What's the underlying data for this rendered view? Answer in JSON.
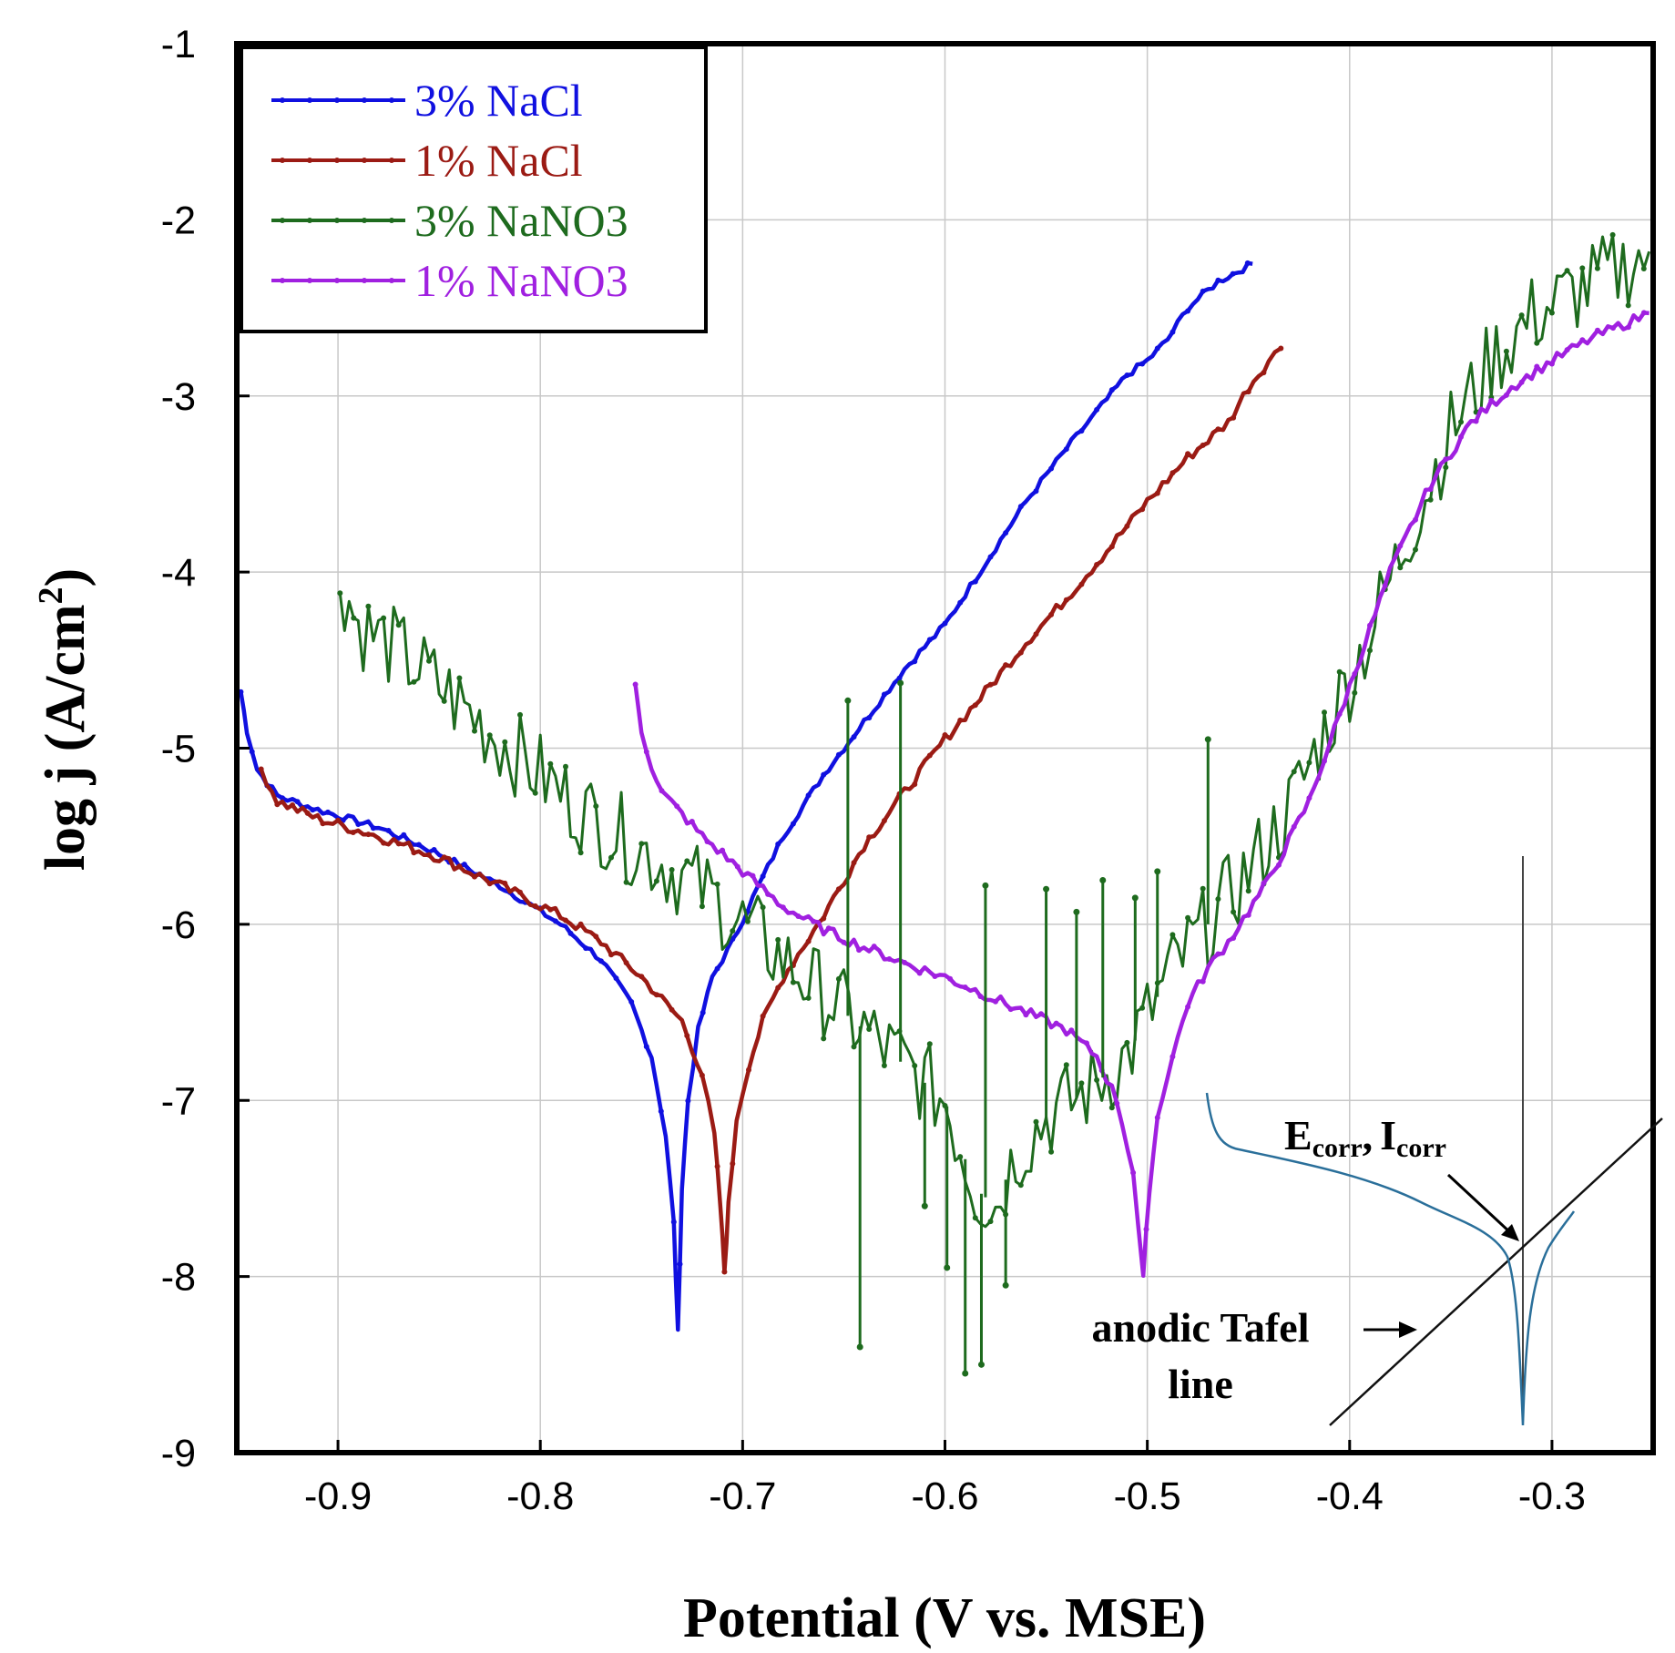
{
  "chart_data": {
    "type": "line",
    "title": "",
    "xlabel": "Potential (V vs. MSE)",
    "ylabel": "log j (A/cm",
    "ylabel_sup": "2",
    "ylabel_close": ")",
    "xlim": [
      -0.95,
      -0.25
    ],
    "ylim": [
      -9,
      -1
    ],
    "x_ticks": [
      -0.9,
      -0.8,
      -0.7,
      -0.6,
      -0.5,
      -0.4,
      -0.3
    ],
    "x_tick_labels": [
      "-0.9",
      "-0.8",
      "-0.7",
      "-0.6",
      "-0.5",
      "-0.4",
      "-0.3"
    ],
    "y_ticks": [
      -9,
      -8,
      -7,
      -6,
      -5,
      -4,
      -3,
      -2,
      -1
    ],
    "y_tick_labels": [
      "-9",
      "-8",
      "-7",
      "-6",
      "-5",
      "-4",
      "-3",
      "-2",
      "-1"
    ],
    "legend_position": "top-left",
    "series": [
      {
        "name": "3% NaCl",
        "color": "#1010e0",
        "noise": 0.02,
        "points": [
          [
            -0.948,
            -4.68
          ],
          [
            -0.945,
            -4.9
          ],
          [
            -0.94,
            -5.12
          ],
          [
            -0.93,
            -5.27
          ],
          [
            -0.91,
            -5.35
          ],
          [
            -0.88,
            -5.45
          ],
          [
            -0.85,
            -5.6
          ],
          [
            -0.82,
            -5.78
          ],
          [
            -0.79,
            -6.0
          ],
          [
            -0.77,
            -6.2
          ],
          [
            -0.755,
            -6.45
          ],
          [
            -0.745,
            -6.75
          ],
          [
            -0.738,
            -7.2
          ],
          [
            -0.734,
            -7.7
          ],
          [
            -0.732,
            -8.32
          ],
          [
            -0.73,
            -7.5
          ],
          [
            -0.727,
            -7.0
          ],
          [
            -0.722,
            -6.6
          ],
          [
            -0.715,
            -6.3
          ],
          [
            -0.705,
            -6.1
          ],
          [
            -0.695,
            -5.85
          ],
          [
            -0.68,
            -5.5
          ],
          [
            -0.66,
            -5.15
          ],
          [
            -0.64,
            -4.85
          ],
          [
            -0.62,
            -4.55
          ],
          [
            -0.6,
            -4.3
          ],
          [
            -0.58,
            -3.95
          ],
          [
            -0.56,
            -3.6
          ],
          [
            -0.54,
            -3.3
          ],
          [
            -0.52,
            -3.02
          ],
          [
            -0.51,
            -2.88
          ],
          [
            -0.5,
            -2.8
          ],
          [
            -0.49,
            -2.68
          ],
          [
            -0.48,
            -2.5
          ],
          [
            -0.465,
            -2.35
          ],
          [
            -0.448,
            -2.25
          ]
        ]
      },
      {
        "name": "1% NaCl",
        "color": "#9b1b14",
        "noise": 0.03,
        "points": [
          [
            -0.938,
            -5.12
          ],
          [
            -0.93,
            -5.3
          ],
          [
            -0.91,
            -5.4
          ],
          [
            -0.88,
            -5.5
          ],
          [
            -0.85,
            -5.62
          ],
          [
            -0.82,
            -5.78
          ],
          [
            -0.79,
            -5.95
          ],
          [
            -0.77,
            -6.1
          ],
          [
            -0.75,
            -6.3
          ],
          [
            -0.73,
            -6.55
          ],
          [
            -0.72,
            -6.85
          ],
          [
            -0.714,
            -7.2
          ],
          [
            -0.711,
            -7.6
          ],
          [
            -0.709,
            -7.97
          ],
          [
            -0.707,
            -7.6
          ],
          [
            -0.703,
            -7.1
          ],
          [
            -0.697,
            -6.8
          ],
          [
            -0.69,
            -6.55
          ],
          [
            -0.68,
            -6.3
          ],
          [
            -0.66,
            -5.95
          ],
          [
            -0.64,
            -5.55
          ],
          [
            -0.62,
            -5.25
          ],
          [
            -0.6,
            -4.95
          ],
          [
            -0.58,
            -4.68
          ],
          [
            -0.56,
            -4.4
          ],
          [
            -0.54,
            -4.15
          ],
          [
            -0.52,
            -3.88
          ],
          [
            -0.5,
            -3.6
          ],
          [
            -0.48,
            -3.35
          ],
          [
            -0.46,
            -3.15
          ],
          [
            -0.45,
            -2.95
          ],
          [
            -0.44,
            -2.8
          ],
          [
            -0.434,
            -2.73
          ]
        ]
      },
      {
        "name": "3% NaNO3",
        "color": "#1e6b1e",
        "noise": 0.25,
        "points": [
          [
            -0.899,
            -4.03
          ],
          [
            -0.89,
            -4.3
          ],
          [
            -0.87,
            -4.45
          ],
          [
            -0.85,
            -4.65
          ],
          [
            -0.82,
            -4.95
          ],
          [
            -0.8,
            -5.15
          ],
          [
            -0.78,
            -5.35
          ],
          [
            -0.76,
            -5.5
          ],
          [
            -0.74,
            -5.65
          ],
          [
            -0.72,
            -5.8
          ],
          [
            -0.7,
            -6.0
          ],
          [
            -0.68,
            -6.2
          ],
          [
            -0.66,
            -6.4
          ],
          [
            -0.64,
            -6.6
          ],
          [
            -0.62,
            -6.8
          ],
          [
            -0.6,
            -7.0
          ],
          [
            -0.585,
            -7.5
          ],
          [
            -0.575,
            -7.6
          ],
          [
            -0.565,
            -7.3
          ],
          [
            -0.55,
            -7.1
          ],
          [
            -0.53,
            -6.95
          ],
          [
            -0.51,
            -6.75
          ],
          [
            -0.49,
            -6.3
          ],
          [
            -0.47,
            -6.0
          ],
          [
            -0.45,
            -5.7
          ],
          [
            -0.43,
            -5.35
          ],
          [
            -0.41,
            -4.85
          ],
          [
            -0.39,
            -4.35
          ],
          [
            -0.37,
            -3.75
          ],
          [
            -0.35,
            -3.2
          ],
          [
            -0.33,
            -2.8
          ],
          [
            -0.31,
            -2.55
          ],
          [
            -0.29,
            -2.42
          ],
          [
            -0.27,
            -2.3
          ],
          [
            -0.252,
            -2.18
          ]
        ]
      },
      {
        "name": "1% NaNO3",
        "color": "#a020e0",
        "noise": 0.03,
        "points": [
          [
            -0.753,
            -4.66
          ],
          [
            -0.75,
            -4.9
          ],
          [
            -0.745,
            -5.1
          ],
          [
            -0.74,
            -5.25
          ],
          [
            -0.72,
            -5.5
          ],
          [
            -0.7,
            -5.7
          ],
          [
            -0.68,
            -5.9
          ],
          [
            -0.66,
            -6.03
          ],
          [
            -0.64,
            -6.13
          ],
          [
            -0.62,
            -6.22
          ],
          [
            -0.6,
            -6.3
          ],
          [
            -0.58,
            -6.4
          ],
          [
            -0.56,
            -6.5
          ],
          [
            -0.54,
            -6.6
          ],
          [
            -0.525,
            -6.75
          ],
          [
            -0.515,
            -7.0
          ],
          [
            -0.507,
            -7.4
          ],
          [
            -0.502,
            -8.02
          ],
          [
            -0.499,
            -7.5
          ],
          [
            -0.495,
            -7.1
          ],
          [
            -0.49,
            -6.85
          ],
          [
            -0.48,
            -6.45
          ],
          [
            -0.47,
            -6.25
          ],
          [
            -0.46,
            -6.1
          ],
          [
            -0.44,
            -5.75
          ],
          [
            -0.42,
            -5.3
          ],
          [
            -0.4,
            -4.65
          ],
          [
            -0.38,
            -4.0
          ],
          [
            -0.36,
            -3.5
          ],
          [
            -0.34,
            -3.15
          ],
          [
            -0.32,
            -2.95
          ],
          [
            -0.3,
            -2.8
          ],
          [
            -0.28,
            -2.67
          ],
          [
            -0.252,
            -2.53
          ]
        ]
      }
    ],
    "spikes_3pct_NaNO3": [
      {
        "x": -0.648,
        "y": -4.73
      },
      {
        "x": -0.642,
        "y": -8.4
      },
      {
        "x": -0.622,
        "y": -4.63
      },
      {
        "x": -0.599,
        "y": -7.95
      },
      {
        "x": -0.58,
        "y": -5.78
      },
      {
        "x": -0.57,
        "y": -8.05
      },
      {
        "x": -0.55,
        "y": -5.8
      },
      {
        "x": -0.535,
        "y": -5.93
      },
      {
        "x": -0.522,
        "y": -5.75
      },
      {
        "x": -0.506,
        "y": -5.85
      },
      {
        "x": -0.47,
        "y": -4.95
      },
      {
        "x": -0.495,
        "y": -5.7
      },
      {
        "x": -0.59,
        "y": -8.55
      },
      {
        "x": -0.582,
        "y": -8.5
      },
      {
        "x": -0.61,
        "y": -7.6
      }
    ],
    "inset": {
      "label_main": "E",
      "label_sub1": "corr",
      "label_comma": ",",
      "label_main2": "I",
      "label_sub2": "corr",
      "tafel_label_1": "anodic Tafel",
      "tafel_label_2": "line",
      "curve_color": "#2a6f9a"
    }
  }
}
